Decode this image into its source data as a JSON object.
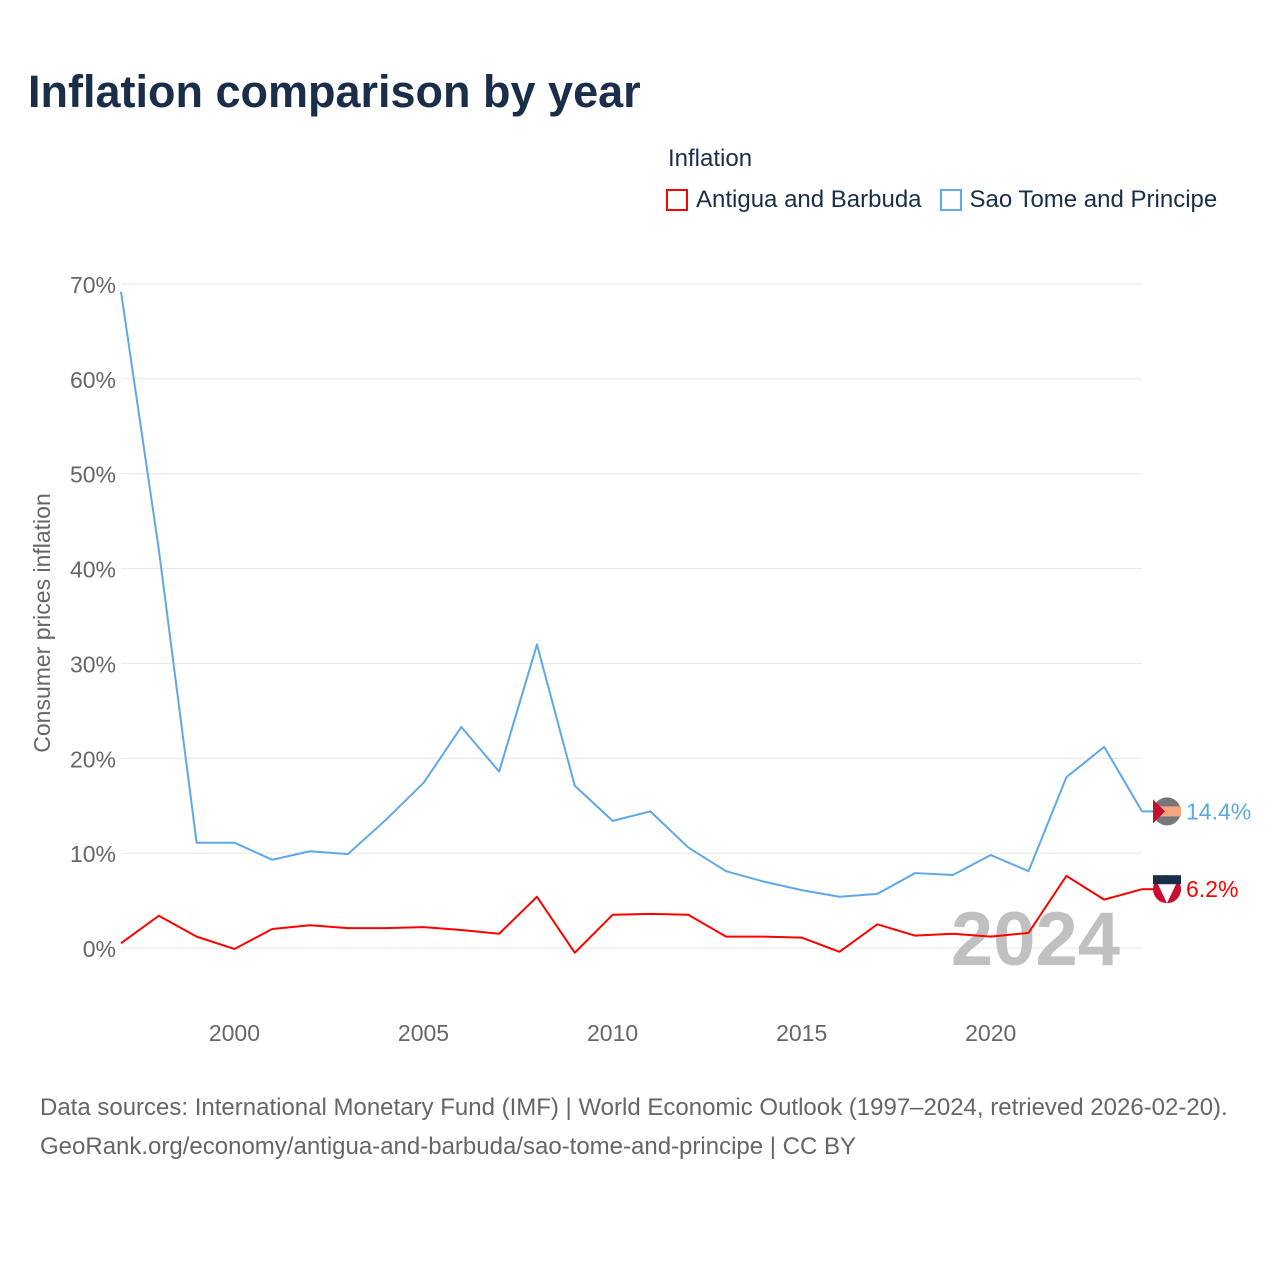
{
  "title": "Inflation comparison by year",
  "chart_data": {
    "type": "line",
    "title": "Inflation comparison by year",
    "ylabel": "Consumer prices inflation",
    "xlabel": "",
    "legend_title": "Inflation",
    "legend_position": "top-right",
    "ylim": [
      0,
      70
    ],
    "xlim": [
      1997,
      2024
    ],
    "yticks": [
      0,
      10,
      20,
      30,
      40,
      50,
      60,
      70
    ],
    "ytick_labels": [
      "0%",
      "10%",
      "20%",
      "30%",
      "40%",
      "50%",
      "60%",
      "70%"
    ],
    "xticks": [
      2000,
      2005,
      2010,
      2015,
      2020
    ],
    "xtick_labels": [
      "2000",
      "2005",
      "2010",
      "2015",
      "2020"
    ],
    "grid": true,
    "x": [
      1997,
      1998,
      1999,
      2000,
      2001,
      2002,
      2003,
      2004,
      2005,
      2006,
      2007,
      2008,
      2009,
      2010,
      2011,
      2012,
      2013,
      2014,
      2015,
      2016,
      2017,
      2018,
      2019,
      2020,
      2021,
      2022,
      2023,
      2024
    ],
    "series": [
      {
        "name": "Antigua and Barbuda",
        "color": "#ff0000",
        "end_label": "6.2%",
        "values": [
          0.5,
          3.4,
          1.2,
          -0.1,
          2.0,
          2.4,
          2.1,
          2.1,
          2.2,
          1.9,
          1.5,
          5.4,
          -0.5,
          3.5,
          3.6,
          3.5,
          1.2,
          1.2,
          1.1,
          -0.4,
          2.5,
          1.3,
          1.5,
          1.2,
          1.6,
          7.6,
          5.1,
          6.2
        ]
      },
      {
        "name": "Sao Tome and Principe",
        "color": "#5fa8e8",
        "end_label": "14.4%",
        "values": [
          69.2,
          42.0,
          11.1,
          11.1,
          9.3,
          10.2,
          9.9,
          13.5,
          17.4,
          23.3,
          18.6,
          32.0,
          17.1,
          13.4,
          14.4,
          10.6,
          8.1,
          7.0,
          6.1,
          5.4,
          5.7,
          7.9,
          7.7,
          9.8,
          8.1,
          18.0,
          21.2,
          14.4
        ]
      }
    ],
    "annotation": "2024"
  },
  "footer": {
    "sources": "Data sources: International Monetary Fund (IMF) | World Economic Outlook (1997–2024, retrieved 2026-02-20).",
    "link": "GeoRank.org/economy/antigua-and-barbuda/sao-tome-and-principe | CC BY"
  }
}
